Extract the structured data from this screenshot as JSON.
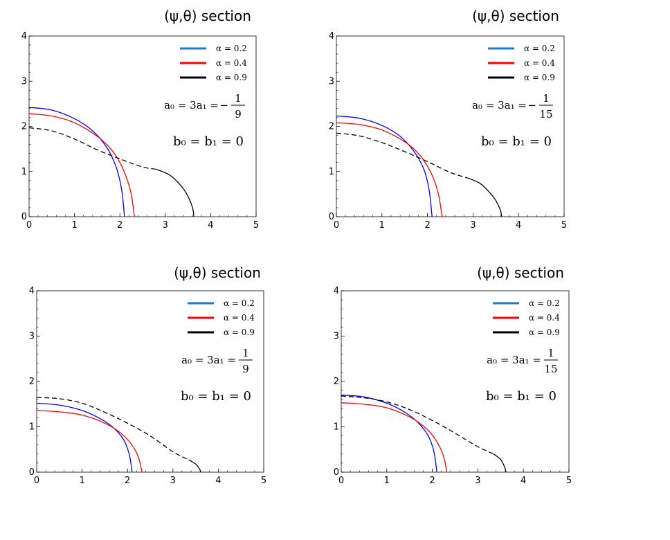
{
  "chart_data": [
    {
      "type": "line",
      "title": "(ψ,θ) section",
      "xlim": [
        0,
        5
      ],
      "ylim": [
        0,
        4
      ],
      "xticks": [
        "0",
        "1",
        "2",
        "3",
        "4",
        "5"
      ],
      "yticks": [
        "0",
        "1",
        "2",
        "3",
        "4"
      ],
      "legend_position": "top-right",
      "annotation_lhs": "a₀ = 3a₁ =",
      "annotation_sign": "−",
      "annotation_num": "1",
      "annotation_den": "9",
      "annotation_b": "b₀ = b₁ = 0",
      "series": [
        {
          "name": "α = 0.2",
          "color": "#0000ff",
          "style": "solid",
          "x": [
            0,
            0.5,
            1.0,
            1.4,
            1.7,
            1.9,
            2.0,
            2.06,
            2.1
          ],
          "y": [
            2.42,
            2.36,
            2.17,
            1.9,
            1.55,
            1.15,
            0.8,
            0.45,
            0
          ]
        },
        {
          "name": "α = 0.4",
          "color": "#ff0000",
          "style": "solid",
          "x": [
            0,
            0.5,
            1.0,
            1.5,
            1.8,
            2.0,
            2.15,
            2.25,
            2.32
          ],
          "y": [
            2.28,
            2.23,
            2.08,
            1.78,
            1.5,
            1.2,
            0.85,
            0.5,
            0
          ]
        },
        {
          "name": "α = 0.9",
          "color": "#000000",
          "style": "dashed",
          "x": [
            0,
            0.5,
            1.0,
            1.5,
            2.0,
            2.5,
            2.8
          ],
          "y": [
            1.97,
            1.9,
            1.72,
            1.48,
            1.28,
            1.1,
            1.05
          ]
        },
        {
          "name": "",
          "color": "#000000",
          "style": "solid",
          "x": [
            2.8,
            3.1,
            3.35,
            3.5,
            3.6,
            3.63
          ],
          "y": [
            1.05,
            0.92,
            0.68,
            0.45,
            0.2,
            0
          ]
        }
      ]
    },
    {
      "type": "line",
      "title": "(ψ,θ) section",
      "xlim": [
        0,
        5
      ],
      "ylim": [
        0,
        4
      ],
      "xticks": [
        "0",
        "1",
        "2",
        "3",
        "4",
        "5"
      ],
      "yticks": [
        "0",
        "1",
        "2",
        "3",
        "4"
      ],
      "legend_position": "top-right",
      "annotation_lhs": "a₀ = 3a₁ =",
      "annotation_sign": "−",
      "annotation_num": "1",
      "annotation_den": "15",
      "annotation_b": "b₀ = b₁ = 0",
      "series": [
        {
          "name": "α = 0.2",
          "color": "#0000ff",
          "style": "solid",
          "x": [
            0,
            0.5,
            1.0,
            1.4,
            1.7,
            1.9,
            2.0,
            2.06,
            2.1
          ],
          "y": [
            2.23,
            2.18,
            2.02,
            1.78,
            1.45,
            1.1,
            0.78,
            0.42,
            0
          ]
        },
        {
          "name": "α = 0.4",
          "color": "#ff0000",
          "style": "solid",
          "x": [
            0,
            0.5,
            1.0,
            1.5,
            1.8,
            2.0,
            2.15,
            2.25,
            2.32
          ],
          "y": [
            2.08,
            2.04,
            1.92,
            1.66,
            1.4,
            1.12,
            0.8,
            0.46,
            0
          ]
        },
        {
          "name": "α = 0.9",
          "color": "#000000",
          "style": "dashed",
          "x": [
            0,
            0.5,
            1.0,
            1.5,
            2.0,
            2.5,
            2.9
          ],
          "y": [
            1.85,
            1.79,
            1.64,
            1.44,
            1.22,
            0.98,
            0.85
          ]
        },
        {
          "name": "",
          "color": "#000000",
          "style": "solid",
          "x": [
            2.9,
            3.15,
            3.35,
            3.5,
            3.6,
            3.63
          ],
          "y": [
            0.85,
            0.74,
            0.55,
            0.36,
            0.15,
            0
          ]
        }
      ]
    },
    {
      "type": "line",
      "title": "(ψ,θ) section",
      "xlim": [
        0,
        5
      ],
      "ylim": [
        0,
        4
      ],
      "xticks": [
        "0",
        "1",
        "2",
        "3",
        "4",
        "5"
      ],
      "yticks": [
        "0",
        "1",
        "2",
        "3",
        "4"
      ],
      "legend_position": "top-right",
      "annotation_lhs": "a₀ = 3a₁ =",
      "annotation_sign": "",
      "annotation_num": "1",
      "annotation_den": "9",
      "annotation_b": "b₀ = b₁ = 0",
      "series": [
        {
          "name": "α = 0.2",
          "color": "#0000ff",
          "style": "solid",
          "x": [
            0,
            0.5,
            1.0,
            1.4,
            1.7,
            1.9,
            2.0,
            2.06,
            2.1
          ],
          "y": [
            1.52,
            1.48,
            1.36,
            1.18,
            0.97,
            0.74,
            0.52,
            0.3,
            0
          ]
        },
        {
          "name": "α = 0.4",
          "color": "#ff0000",
          "style": "solid",
          "x": [
            0,
            0.5,
            1.0,
            1.5,
            1.8,
            2.0,
            2.15,
            2.25,
            2.32
          ],
          "y": [
            1.36,
            1.33,
            1.26,
            1.08,
            0.9,
            0.72,
            0.52,
            0.3,
            0
          ]
        },
        {
          "name": "α = 0.9",
          "color": "#000000",
          "style": "dashed",
          "x": [
            0,
            0.5,
            1.0,
            1.5,
            2.0,
            2.5,
            3.0,
            3.35
          ],
          "y": [
            1.65,
            1.62,
            1.52,
            1.32,
            1.08,
            0.8,
            0.45,
            0.27
          ]
        },
        {
          "name": "",
          "color": "#000000",
          "style": "solid",
          "x": [
            3.35,
            3.5,
            3.58,
            3.62
          ],
          "y": [
            0.27,
            0.18,
            0.08,
            0
          ]
        }
      ]
    },
    {
      "type": "line",
      "title": "(ψ,θ) section",
      "xlim": [
        0,
        5
      ],
      "ylim": [
        0,
        4
      ],
      "xticks": [
        "0",
        "1",
        "2",
        "3",
        "4",
        "5"
      ],
      "yticks": [
        "0",
        "1",
        "2",
        "3",
        "4"
      ],
      "legend_position": "top-right",
      "annotation_lhs": "a₀ = 3a₁ =",
      "annotation_sign": "",
      "annotation_num": "1",
      "annotation_den": "15",
      "annotation_b": "b₀ = b₁ = 0",
      "series": [
        {
          "name": "α = 0.2",
          "color": "#0000ff",
          "style": "solid",
          "x": [
            0,
            0.5,
            1.0,
            1.4,
            1.7,
            1.9,
            2.0,
            2.06,
            2.1
          ],
          "y": [
            1.7,
            1.66,
            1.52,
            1.32,
            1.08,
            0.82,
            0.58,
            0.32,
            0
          ]
        },
        {
          "name": "α = 0.4",
          "color": "#ff0000",
          "style": "solid",
          "x": [
            0,
            0.5,
            1.0,
            1.5,
            1.8,
            2.0,
            2.15,
            2.25,
            2.32
          ],
          "y": [
            1.53,
            1.5,
            1.42,
            1.22,
            1.02,
            0.82,
            0.58,
            0.34,
            0
          ]
        },
        {
          "name": "α = 0.9",
          "color": "#000000",
          "style": "dashed",
          "x": [
            0,
            0.5,
            1.0,
            1.5,
            2.0,
            2.5,
            3.0,
            3.35
          ],
          "y": [
            1.68,
            1.64,
            1.55,
            1.38,
            1.14,
            0.86,
            0.56,
            0.4
          ]
        },
        {
          "name": "",
          "color": "#000000",
          "style": "solid",
          "x": [
            3.35,
            3.5,
            3.58,
            3.62
          ],
          "y": [
            0.4,
            0.28,
            0.13,
            0
          ]
        }
      ]
    }
  ]
}
